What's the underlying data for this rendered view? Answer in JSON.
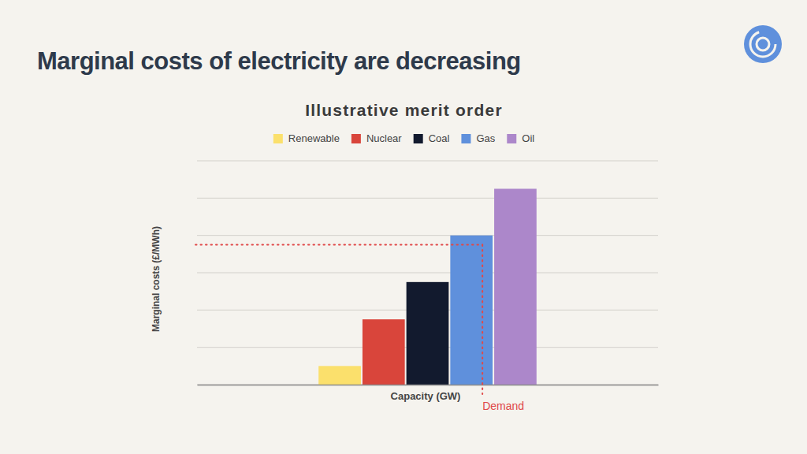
{
  "heading": "Marginal costs of electricity are decreasing",
  "chart_data": {
    "type": "bar",
    "title": "Illustrative merit order",
    "x_label": "Capacity (GW)",
    "y_label": "Marginal costs (£/MWh)",
    "categories": [
      "Renewable",
      "Nuclear",
      "Coal",
      "Gas",
      "Oil"
    ],
    "values": [
      0.5,
      1.75,
      2.75,
      4.0,
      5.25
    ],
    "bins": [
      5.5,
      7.5,
      9.5,
      11.5,
      13.5,
      15.5
    ],
    "colors": [
      "#fbe06c",
      "#d9453b",
      "#121a2e",
      "#5f90dc",
      "#ac87ca"
    ],
    "xlim": [
      0,
      21
    ],
    "ylim": [
      0,
      6
    ],
    "yticks": [
      0,
      1,
      2,
      3,
      4,
      5,
      6
    ],
    "grid": true,
    "legend": "top",
    "tick_labels": false,
    "annotations": [
      {
        "text": "Demand",
        "x": 13,
        "y": 3.75
      }
    ]
  }
}
